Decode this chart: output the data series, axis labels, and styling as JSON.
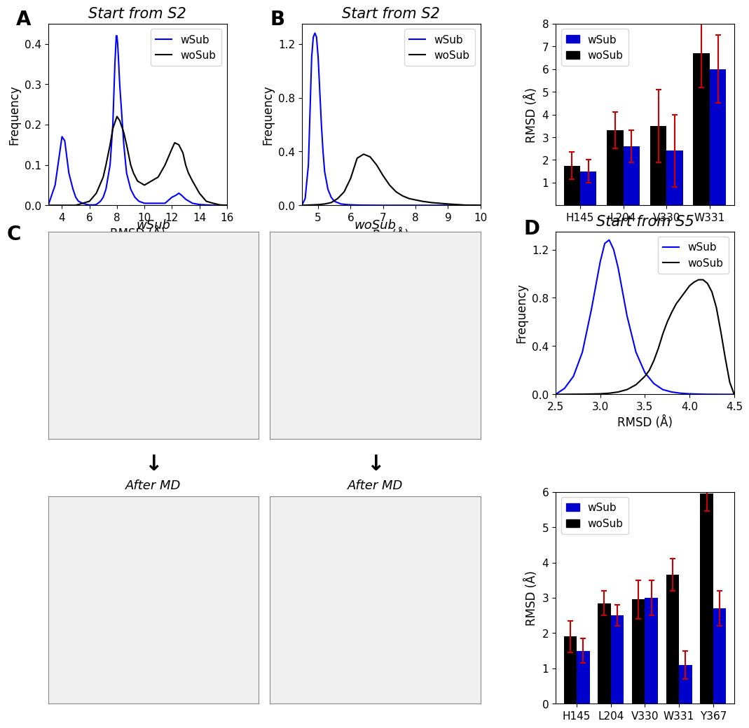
{
  "panel_A": {
    "title": "Start from S2",
    "xlabel": "RMSD (Å)",
    "ylabel": "Frequency",
    "xlim": [
      3,
      16
    ],
    "ylim": [
      0,
      0.45
    ],
    "yticks": [
      0.0,
      0.1,
      0.2,
      0.3,
      0.4
    ],
    "xticks": [
      4,
      6,
      8,
      10,
      12,
      14,
      16
    ],
    "wSub_x": [
      3.0,
      3.5,
      4.0,
      4.2,
      4.5,
      4.8,
      5.0,
      5.2,
      5.5,
      5.8,
      6.0,
      6.3,
      6.5,
      6.8,
      7.0,
      7.2,
      7.5,
      7.7,
      7.85,
      7.95,
      8.0,
      8.05,
      8.1,
      8.2,
      8.3,
      8.5,
      8.7,
      9.0,
      9.3,
      9.6,
      10.0,
      10.5,
      11.0,
      11.5,
      12.0,
      12.3,
      12.5,
      12.7,
      13.0,
      13.5,
      14.0,
      14.5,
      15.0,
      15.5,
      16.0
    ],
    "wSub_y": [
      0.0,
      0.05,
      0.17,
      0.16,
      0.08,
      0.04,
      0.02,
      0.01,
      0.005,
      0.002,
      0.001,
      0.001,
      0.002,
      0.01,
      0.02,
      0.04,
      0.1,
      0.2,
      0.35,
      0.42,
      0.42,
      0.4,
      0.37,
      0.3,
      0.25,
      0.15,
      0.08,
      0.04,
      0.02,
      0.01,
      0.005,
      0.005,
      0.005,
      0.005,
      0.02,
      0.025,
      0.03,
      0.025,
      0.015,
      0.005,
      0.002,
      0.001,
      0.0,
      0.0,
      0.0
    ],
    "woSub_x": [
      3.0,
      3.5,
      4.0,
      4.5,
      5.0,
      5.5,
      6.0,
      6.5,
      7.0,
      7.2,
      7.5,
      7.7,
      8.0,
      8.2,
      8.5,
      8.7,
      9.0,
      9.2,
      9.5,
      10.0,
      10.5,
      11.0,
      11.5,
      12.0,
      12.2,
      12.5,
      12.8,
      13.0,
      13.2,
      13.5,
      14.0,
      14.5,
      15.0,
      15.5,
      16.0
    ],
    "woSub_y": [
      0.0,
      0.0,
      0.0,
      0.0,
      0.0,
      0.005,
      0.01,
      0.03,
      0.07,
      0.1,
      0.15,
      0.19,
      0.22,
      0.21,
      0.18,
      0.15,
      0.1,
      0.08,
      0.06,
      0.05,
      0.06,
      0.07,
      0.1,
      0.14,
      0.155,
      0.15,
      0.13,
      0.1,
      0.08,
      0.06,
      0.03,
      0.01,
      0.005,
      0.001,
      0.0
    ]
  },
  "panel_B": {
    "title": "Start from S2",
    "xlabel": "Rg (Å)",
    "ylabel": "Frequency",
    "xlim": [
      4.5,
      10
    ],
    "ylim": [
      0,
      1.35
    ],
    "yticks": [
      0.0,
      0.4,
      0.8,
      1.2
    ],
    "xticks": [
      5,
      6,
      7,
      8,
      9,
      10
    ],
    "wSub_x": [
      4.5,
      4.6,
      4.7,
      4.75,
      4.8,
      4.85,
      4.9,
      4.95,
      5.0,
      5.05,
      5.1,
      5.15,
      5.2,
      5.3,
      5.4,
      5.5,
      5.7,
      5.9,
      6.2,
      6.5,
      7.0,
      7.5,
      8.0,
      8.5,
      9.0,
      9.5,
      10.0
    ],
    "wSub_y": [
      0.0,
      0.05,
      0.3,
      0.7,
      1.1,
      1.25,
      1.28,
      1.25,
      1.1,
      0.85,
      0.6,
      0.4,
      0.25,
      0.12,
      0.06,
      0.03,
      0.01,
      0.005,
      0.002,
      0.001,
      0.0,
      0.0,
      0.0,
      0.0,
      0.0,
      0.0,
      0.0
    ],
    "woSub_x": [
      4.5,
      5.0,
      5.2,
      5.4,
      5.6,
      5.8,
      6.0,
      6.2,
      6.4,
      6.6,
      6.8,
      7.0,
      7.2,
      7.4,
      7.6,
      7.8,
      8.0,
      8.2,
      8.5,
      9.0,
      9.5,
      10.0
    ],
    "woSub_y": [
      0.0,
      0.005,
      0.01,
      0.02,
      0.05,
      0.1,
      0.2,
      0.35,
      0.38,
      0.36,
      0.3,
      0.22,
      0.15,
      0.1,
      0.07,
      0.05,
      0.04,
      0.03,
      0.02,
      0.01,
      0.002,
      0.0
    ]
  },
  "panel_bar1": {
    "ylabel": "RMSD (Å)",
    "ylim": [
      0,
      8
    ],
    "yticks": [
      1,
      2,
      3,
      4,
      5,
      6,
      7,
      8
    ],
    "categories": [
      "H145",
      "L204",
      "V330",
      "W331"
    ],
    "wSub_values": [
      1.5,
      2.6,
      2.4,
      6.0
    ],
    "woSub_values": [
      1.75,
      3.3,
      3.5,
      6.7
    ],
    "wSub_errors": [
      0.5,
      0.7,
      1.6,
      1.5
    ],
    "woSub_errors": [
      0.6,
      0.8,
      1.6,
      1.5
    ]
  },
  "panel_D_line": {
    "title": "Start from S5",
    "xlabel": "RMSD (Å)",
    "ylabel": "Frequency",
    "xlim": [
      2.5,
      4.5
    ],
    "ylim": [
      0,
      1.35
    ],
    "yticks": [
      0.0,
      0.4,
      0.8,
      1.2
    ],
    "xticks": [
      2.5,
      3.0,
      3.5,
      4.0,
      4.5
    ],
    "wSub_x": [
      2.5,
      2.6,
      2.7,
      2.8,
      2.9,
      3.0,
      3.05,
      3.1,
      3.15,
      3.2,
      3.25,
      3.3,
      3.4,
      3.5,
      3.6,
      3.7,
      3.8,
      3.9,
      4.0,
      4.2,
      4.5
    ],
    "wSub_y": [
      0.0,
      0.05,
      0.15,
      0.35,
      0.7,
      1.1,
      1.25,
      1.28,
      1.2,
      1.05,
      0.85,
      0.65,
      0.35,
      0.18,
      0.09,
      0.04,
      0.02,
      0.01,
      0.005,
      0.001,
      0.0
    ],
    "woSub_x": [
      2.5,
      2.8,
      3.0,
      3.1,
      3.2,
      3.3,
      3.4,
      3.5,
      3.55,
      3.6,
      3.65,
      3.7,
      3.75,
      3.8,
      3.85,
      3.9,
      3.95,
      4.0,
      4.05,
      4.1,
      4.15,
      4.2,
      4.25,
      4.3,
      4.35,
      4.4,
      4.45,
      4.5
    ],
    "woSub_y": [
      0.0,
      0.002,
      0.005,
      0.01,
      0.02,
      0.04,
      0.08,
      0.15,
      0.2,
      0.28,
      0.38,
      0.5,
      0.6,
      0.68,
      0.75,
      0.8,
      0.85,
      0.9,
      0.93,
      0.95,
      0.95,
      0.92,
      0.85,
      0.72,
      0.52,
      0.3,
      0.1,
      0.0
    ]
  },
  "panel_bar2": {
    "ylabel": "RMSD (Å)",
    "ylim": [
      0,
      6
    ],
    "yticks": [
      0,
      1,
      2,
      3,
      4,
      5,
      6
    ],
    "categories": [
      "H145",
      "L204",
      "V330",
      "W331",
      "Y367"
    ],
    "wSub_values": [
      1.5,
      2.5,
      3.0,
      1.1,
      2.7
    ],
    "woSub_values": [
      1.9,
      2.85,
      2.95,
      3.65,
      5.95
    ],
    "wSub_errors": [
      0.35,
      0.3,
      0.5,
      0.4,
      0.5
    ],
    "woSub_errors": [
      0.45,
      0.35,
      0.55,
      0.45,
      0.5
    ]
  },
  "colors": {
    "wSub": "#0000ff",
    "woSub": "#000000",
    "bar_wSub": "#0000cc",
    "bar_woSub": "#000000",
    "error_bar": "#cc0000",
    "background": "#ffffff"
  },
  "font_sizes": {
    "panel_label": 20,
    "title": 15,
    "axis_label": 12,
    "tick_label": 11,
    "legend": 11
  },
  "layout": {
    "fig_width": 10.7,
    "fig_height": 10.28,
    "dpi": 100
  }
}
